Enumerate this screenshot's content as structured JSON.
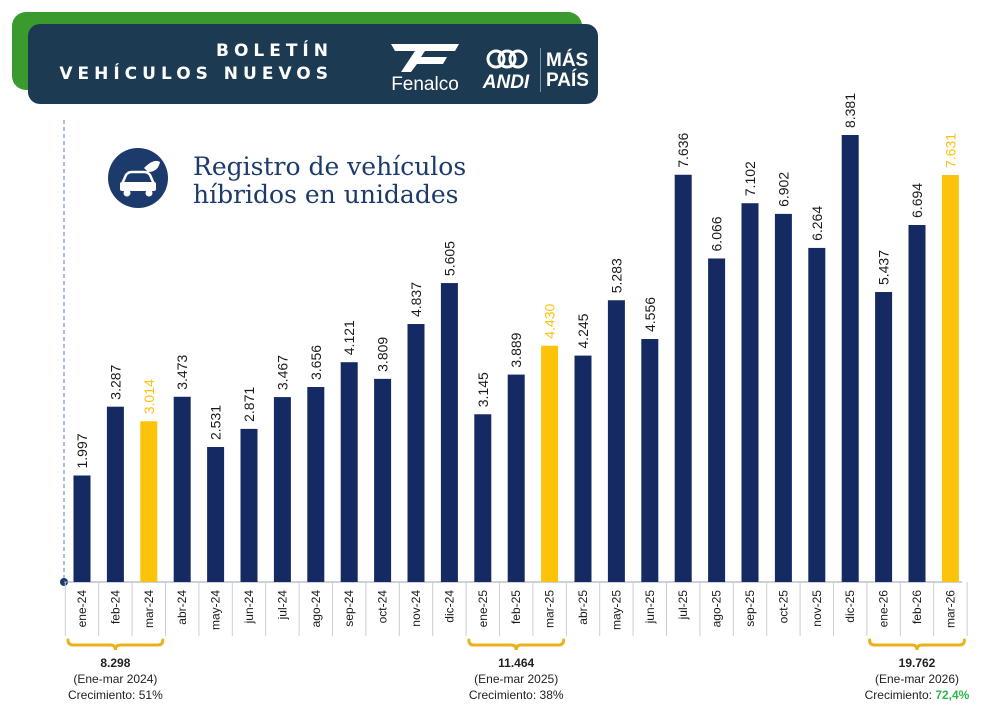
{
  "header": {
    "title_line1": "BOLETÍN",
    "title_line2": "VEHÍCULOS NUEVOS",
    "logos": {
      "fenalco": "Fenalco",
      "andi": "ANDI",
      "maspais_line1": "MÁS",
      "maspais_line2": "PAÍS"
    }
  },
  "colors": {
    "bar": "#152a63",
    "highlight": "#fdc20a",
    "bracket": "#e9b21c",
    "growth_green": "#2db84a"
  },
  "icons": {
    "title_icon": "hybrid-car-leaf-icon"
  },
  "chart_data": {
    "type": "bar",
    "title_line1": "Registro de vehículos",
    "title_line2": "híbridos  en unidades",
    "categories": [
      "ene-24",
      "feb-24",
      "mar-24",
      "abr-24",
      "may-24",
      "jun-24",
      "jul-24",
      "ago-24",
      "sep-24",
      "oct-24",
      "nov-24",
      "dic-24",
      "ene-25",
      "feb-25",
      "mar-25",
      "abr-25",
      "may-25",
      "jun-25",
      "jul-25",
      "ago-25",
      "sep-25",
      "oct-25",
      "nov-25",
      "dic-25",
      "ene-26",
      "feb-26",
      "mar-26"
    ],
    "values": [
      1997,
      3287,
      3014,
      3473,
      2531,
      2871,
      3467,
      3656,
      4121,
      3809,
      4837,
      5605,
      3145,
      3889,
      4430,
      4245,
      5283,
      4556,
      7636,
      6066,
      7102,
      6902,
      6264,
      8381,
      5437,
      6694,
      7631
    ],
    "value_labels": [
      "1.997",
      "3.287",
      "3.014",
      "3.473",
      "2.531",
      "2.871",
      "3.467",
      "3.656",
      "4.121",
      "3.809",
      "4.837",
      "5.605",
      "3.145",
      "3.889",
      "4.430",
      "4.245",
      "5.283",
      "4.556",
      "7.636",
      "6.066",
      "7.102",
      "6.902",
      "6.264",
      "8.381",
      "5.437",
      "6.694",
      "7.631"
    ],
    "highlighted": [
      "mar-24",
      "mar-25",
      "mar-26"
    ],
    "ylim": [
      0,
      9000
    ],
    "xlabel": "",
    "ylabel": "",
    "summaries": [
      {
        "from": "ene-24",
        "to": "mar-24",
        "total": "8.298",
        "period": "(Ene-mar 2024)",
        "growth_label": "Crecimiento:",
        "growth_value": "51%",
        "growth_highlight": false
      },
      {
        "from": "ene-25",
        "to": "mar-25",
        "total": "11.464",
        "period": "(Ene-mar 2025)",
        "growth_label": "Crecimiento:",
        "growth_value": "38%",
        "growth_highlight": false
      },
      {
        "from": "ene-26",
        "to": "mar-26",
        "total": "19.762",
        "period": "(Ene-mar 2026)",
        "growth_label": "Crecimiento:",
        "growth_value": "72,4%",
        "growth_highlight": true
      }
    ]
  }
}
